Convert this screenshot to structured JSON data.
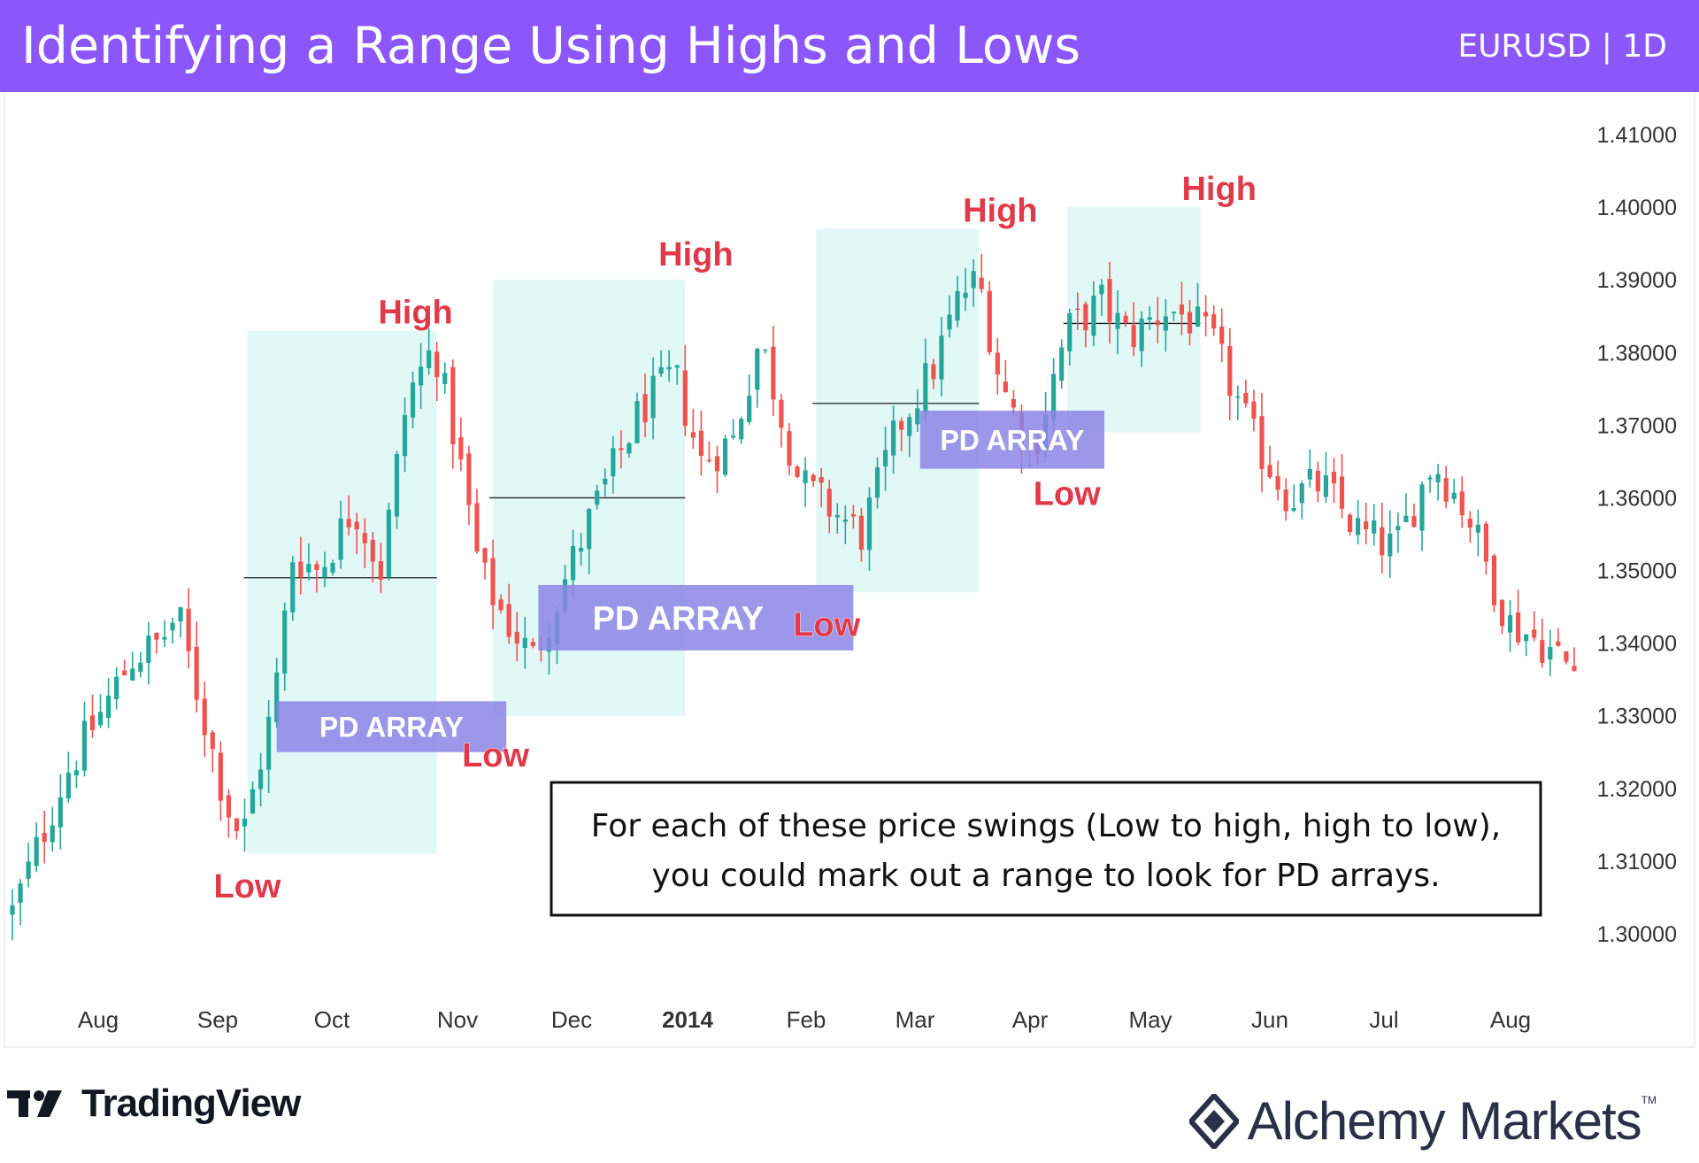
{
  "header": {
    "title": "Identifying a Range Using Highs and Lows",
    "symbol": "EURUSD | 1D"
  },
  "colors": {
    "header_bg": "#8b57fb",
    "bull": "#26a69a",
    "bear": "#ef5350",
    "range_fill": "#d8f6f4",
    "pd_fill": "#8c85e6",
    "label_red": "#e03a4a"
  },
  "annotation": {
    "line1": "For each of these price swings (Low to high, high to low),",
    "line2": "you could mark out a range to look for PD arrays."
  },
  "footer": {
    "tradingview": "TradingView",
    "alchemy": "Alchemy Markets",
    "tm": "TM"
  },
  "chart_data": {
    "type": "candlestick",
    "y_axis": {
      "min": 1.295,
      "max": 1.415,
      "ticks": [
        "1.41000",
        "1.40000",
        "1.39000",
        "1.38000",
        "1.37000",
        "1.36000",
        "1.35000",
        "1.34000",
        "1.33000",
        "1.32000",
        "1.31000",
        "1.30000"
      ]
    },
    "x_axis": {
      "labels": [
        "Aug",
        "Sep",
        "Oct",
        "Nov",
        "Dec",
        "2014",
        "Feb",
        "Mar",
        "Apr",
        "May",
        "Jun",
        "Jul",
        "Aug"
      ]
    },
    "close_path": [
      [
        0,
        1.303
      ],
      [
        20,
        1.322
      ],
      [
        45,
        1.338
      ],
      [
        55,
        1.34
      ],
      [
        62,
        1.344
      ],
      [
        70,
        1.332
      ],
      [
        80,
        1.318
      ],
      [
        86,
        1.313
      ],
      [
        98,
        1.332
      ],
      [
        105,
        1.352
      ],
      [
        115,
        1.35
      ],
      [
        128,
        1.359
      ],
      [
        138,
        1.35
      ],
      [
        148,
        1.374
      ],
      [
        158,
        1.381
      ],
      [
        167,
        1.366
      ],
      [
        175,
        1.35
      ],
      [
        185,
        1.343
      ],
      [
        195,
        1.338
      ],
      [
        215,
        1.356
      ],
      [
        235,
        1.372
      ],
      [
        248,
        1.377
      ],
      [
        258,
        1.365
      ],
      [
        270,
        1.368
      ],
      [
        280,
        1.382
      ],
      [
        295,
        1.362
      ],
      [
        308,
        1.358
      ],
      [
        318,
        1.355
      ],
      [
        332,
        1.37
      ],
      [
        345,
        1.378
      ],
      [
        355,
        1.388
      ],
      [
        362,
        1.39
      ],
      [
        370,
        1.376
      ],
      [
        382,
        1.366
      ],
      [
        395,
        1.383
      ],
      [
        408,
        1.387
      ],
      [
        418,
        1.382
      ],
      [
        432,
        1.386
      ],
      [
        440,
        1.385
      ],
      [
        450,
        1.381
      ],
      [
        465,
        1.368
      ],
      [
        478,
        1.36
      ],
      [
        490,
        1.362
      ],
      [
        505,
        1.355
      ],
      [
        518,
        1.353
      ],
      [
        532,
        1.365
      ],
      [
        545,
        1.358
      ],
      [
        560,
        1.343
      ],
      [
        573,
        1.34
      ],
      [
        586,
        1.336
      ]
    ],
    "ranges": [
      {
        "label_high": "High",
        "label_low": "Low",
        "x0": 88,
        "x1": 159,
        "y_top": 1.383,
        "y_bottom": 1.311,
        "mid": 1.349
      },
      {
        "label_high": "High",
        "label_low": "Low",
        "x0": 180,
        "x1": 252,
        "y_top": 1.39,
        "y_bottom": 1.33,
        "mid": 1.36
      },
      {
        "label_high": "High",
        "label_low": "Low",
        "x0": 301,
        "x1": 362,
        "y_top": 1.397,
        "y_bottom": 1.347,
        "mid": 1.373
      },
      {
        "label_high": "High",
        "label_low": "Low",
        "x0": 395,
        "x1": 445,
        "y_top": 1.4,
        "y_bottom": 1.369,
        "mid": 1.384
      }
    ],
    "pd_arrays": [
      {
        "label": "PD ARRAY",
        "x0": 99,
        "x1": 185,
        "y_top": 1.332,
        "y_bottom": 1.325
      },
      {
        "label": "PD ARRAY",
        "x0": 197,
        "x1": 315,
        "y_top": 1.348,
        "y_bottom": 1.339
      },
      {
        "label": "PD ARRAY",
        "x0": 340,
        "x1": 409,
        "y_top": 1.372,
        "y_bottom": 1.364
      }
    ],
    "labels": [
      {
        "text": "High",
        "x": 151,
        "y": 1.384
      },
      {
        "text": "Low",
        "x": 88,
        "y": 1.305
      },
      {
        "text": "High",
        "x": 256,
        "y": 1.392
      },
      {
        "text": "Low",
        "x": 181,
        "y": 1.323
      },
      {
        "text": "High",
        "x": 370,
        "y": 1.398
      },
      {
        "text": "Low",
        "x": 305,
        "y": 1.341
      },
      {
        "text": "High",
        "x": 452,
        "y": 1.401
      },
      {
        "text": "Low",
        "x": 395,
        "y": 1.359
      }
    ]
  }
}
